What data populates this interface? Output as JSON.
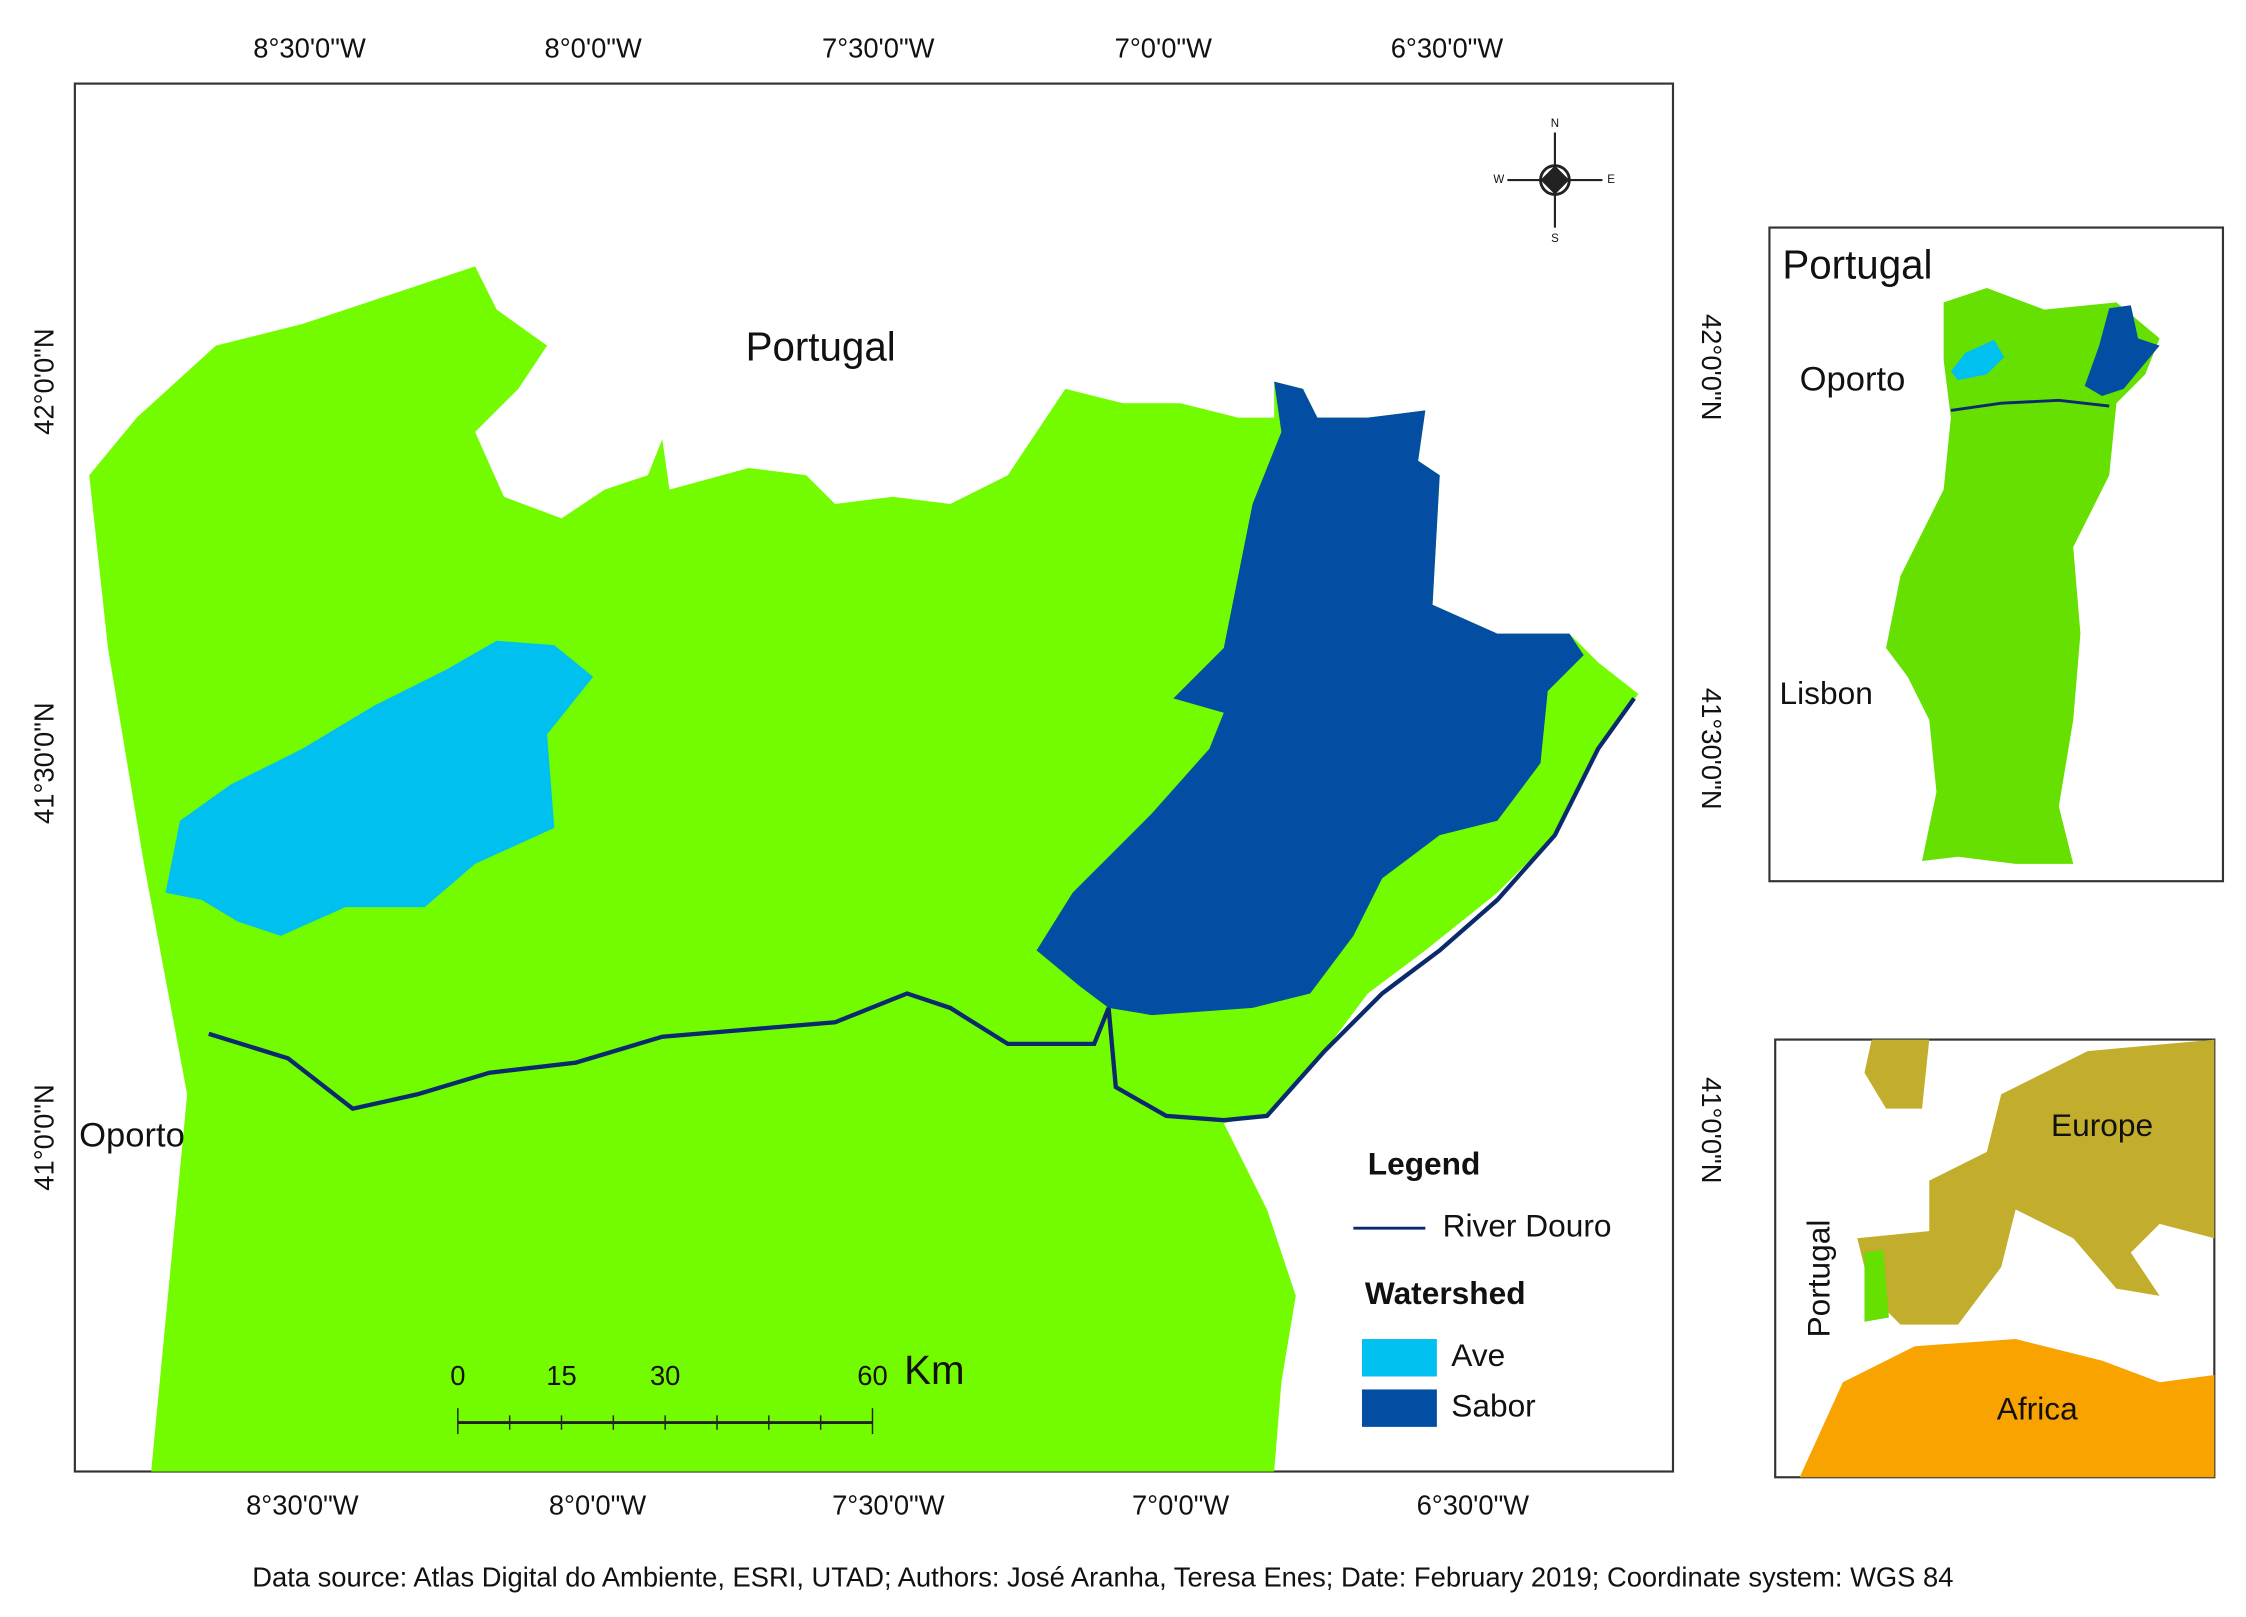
{
  "map": {
    "top_longitude_labels": [
      "8°30'0\"W",
      "8°0'0\"W",
      "7°30'0\"W",
      "7°0'0\"W",
      "6°30'0\"W"
    ],
    "bottom_longitude_labels": [
      "8°30'0\"W",
      "8°0'0\"W",
      "7°30'0\"W",
      "7°0'0\"W",
      "6°30'0\"W"
    ],
    "left_latitude_labels": [
      "42°0'0\"N",
      "41°30'0\"N",
      "41°0'0\"N"
    ],
    "right_latitude_labels": [
      "42°0'0\"N",
      "41°30'0\"N",
      "41°0'0\"N"
    ],
    "country_label": "Portugal",
    "city_label": "Oporto",
    "compass": [
      "N",
      "S",
      "E",
      "W"
    ]
  },
  "legend": {
    "title": "Legend",
    "river": "River Douro",
    "watershed_title": "Watershed",
    "watersheds": [
      "Ave",
      "Sabor"
    ]
  },
  "scale_bar": {
    "ticks": [
      0,
      15,
      30,
      60
    ],
    "unit": "Km"
  },
  "inset_portugal": {
    "title": "Portugal",
    "cities": [
      "Oporto",
      "Lisbon"
    ]
  },
  "inset_europe": {
    "labels": [
      "Europe",
      "Portugal",
      "Africa"
    ]
  },
  "footer": "Data source: Atlas Digital do Ambiente, ESRI, UTAD; Authors: José Aranha, Teresa Enes; Date: February 2019; Coordinate system: WGS 84"
}
